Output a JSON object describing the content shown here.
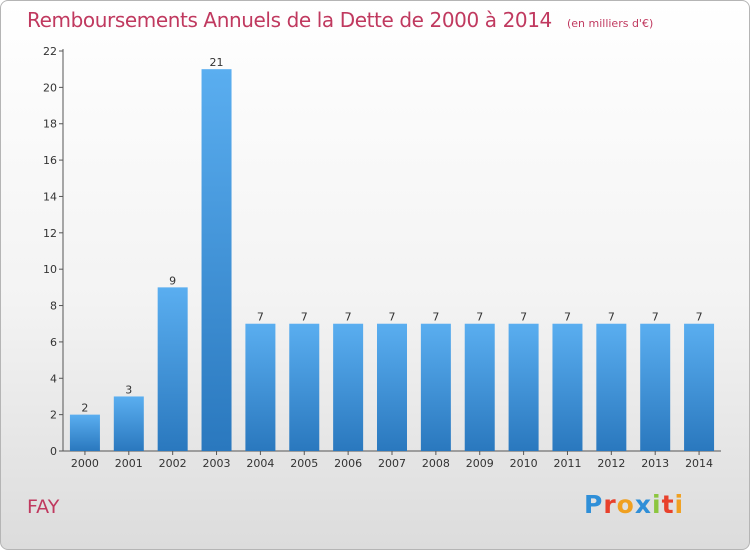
{
  "header": {
    "title": "Remboursements Annuels de la Dette de 2000 à 2014",
    "subtitle": "(en milliers d'€)"
  },
  "footer": {
    "commune": "FAY",
    "logo_text": "Proxiti",
    "logo_colors": [
      "#2f8fd8",
      "#e8412c",
      "#f0a020",
      "#2f8fd8",
      "#8cc63f",
      "#e8412c",
      "#f0a020"
    ]
  },
  "colors": {
    "title": "#c0395f",
    "bar_top": "#5aaef0",
    "bar_bottom": "#2a78be"
  },
  "chart_data": {
    "type": "bar",
    "title": "Remboursements Annuels de la Dette de 2000 à 2014",
    "subtitle": "(en milliers d'€)",
    "categories": [
      "2000",
      "2001",
      "2002",
      "2003",
      "2004",
      "2005",
      "2006",
      "2007",
      "2008",
      "2009",
      "2010",
      "2011",
      "2012",
      "2013",
      "2014"
    ],
    "values": [
      2,
      3,
      9,
      21,
      7,
      7,
      7,
      7,
      7,
      7,
      7,
      7,
      7,
      7,
      7
    ],
    "data_labels": [
      "2",
      "3",
      "9",
      "21",
      "7",
      "7",
      "7",
      "7",
      "7",
      "7",
      "7",
      "7",
      "7",
      "7",
      "7"
    ],
    "ylim": [
      0,
      22
    ],
    "yticks": [
      0,
      2,
      4,
      6,
      8,
      10,
      12,
      14,
      16,
      18,
      20,
      22
    ],
    "grid": false,
    "legend": "none"
  }
}
